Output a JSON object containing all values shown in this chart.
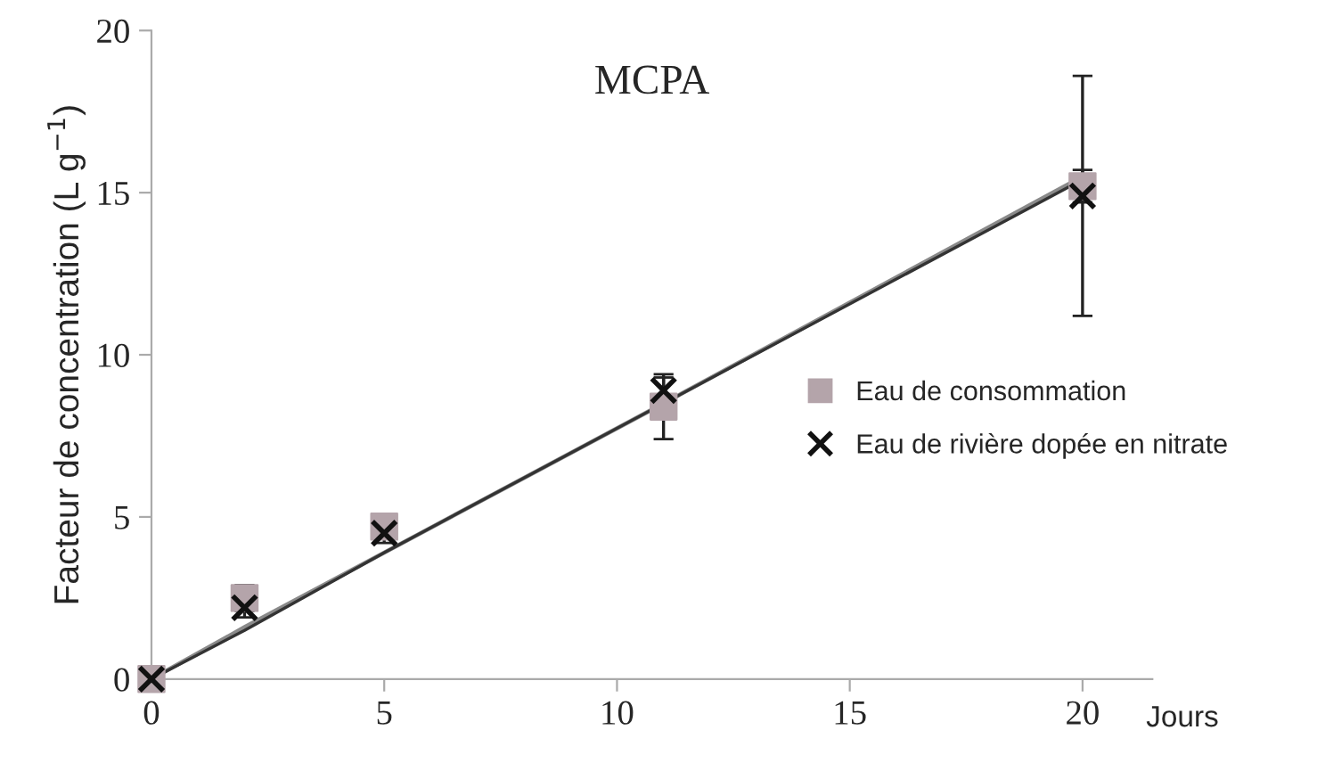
{
  "chart_data": {
    "type": "scatter",
    "title": "MCPA",
    "xlabel": "Jours",
    "ylabel": "Facteur de concentration (L g$^{−1}$)",
    "x": [
      0,
      2,
      5,
      11,
      20
    ],
    "series": [
      {
        "name": "Eau de consommation",
        "color": "#b4a4aa",
        "marker": "square",
        "values": [
          0,
          2.5,
          4.7,
          8.4,
          15.2
        ],
        "errors": [
          null,
          0.4,
          0.2,
          1.0,
          0.5
        ]
      },
      {
        "name": "Eau de rivière dopée en nitrate",
        "color": "#111111",
        "marker": "cross",
        "values": [
          0,
          2.2,
          4.5,
          8.9,
          14.9
        ],
        "errors": [
          null,
          0.3,
          0.3,
          0.4,
          3.7
        ]
      },
      {
        "type": "line",
        "color": "#8a8a8a",
        "values": [
          0,
          1.6,
          3.9,
          8.5,
          15.5
        ]
      },
      {
        "type": "line",
        "color": "#333333",
        "values": [
          0,
          1.5,
          3.9,
          8.5,
          15.4
        ]
      }
    ],
    "xlim": [
      0,
      21.5
    ],
    "ylim": [
      0,
      20
    ],
    "xticks": [
      0,
      5,
      10,
      15,
      20
    ],
    "yticks": [
      0,
      5,
      10,
      15,
      20
    ],
    "grid": false,
    "legend": "right"
  }
}
